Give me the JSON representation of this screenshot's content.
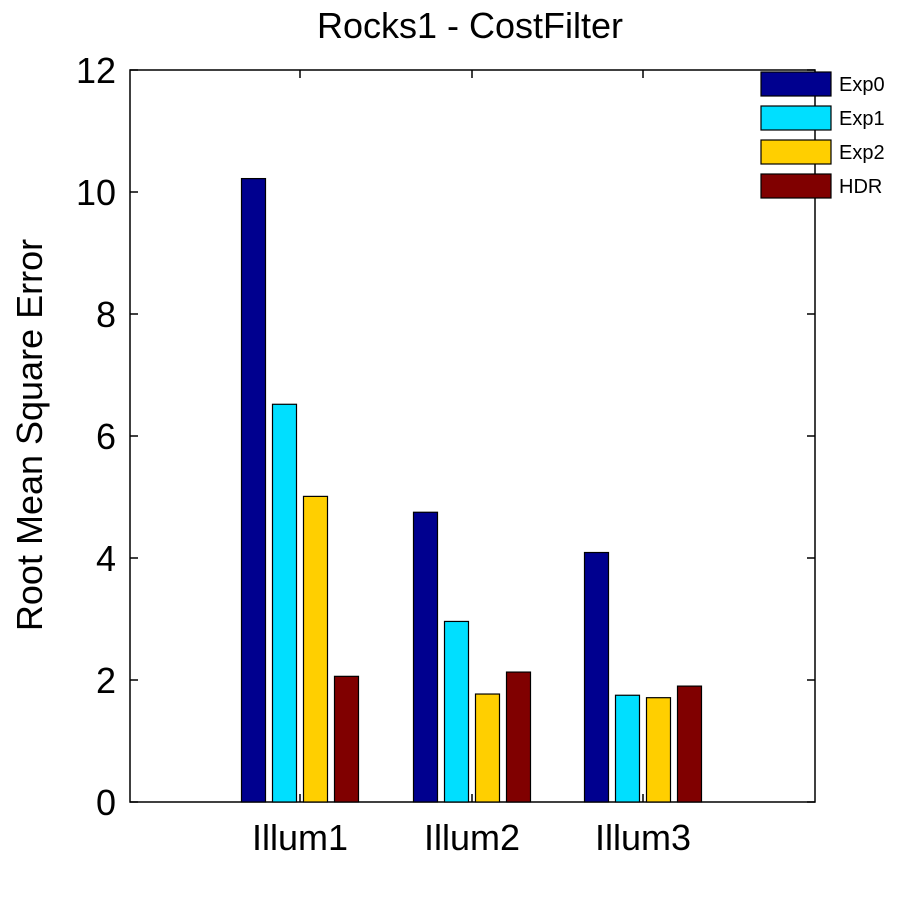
{
  "chart_data": {
    "type": "bar",
    "title": "Rocks1 - CostFilter",
    "xlabel": "",
    "ylabel": "Root Mean Square Error",
    "ylim": [
      0,
      12
    ],
    "yticks": [
      0,
      2,
      4,
      6,
      8,
      10,
      12
    ],
    "categories": [
      "Illum1",
      "Illum2",
      "Illum3"
    ],
    "series": [
      {
        "name": "Exp0",
        "color": "#00008F",
        "values": [
          10.22,
          4.75,
          4.09
        ]
      },
      {
        "name": "Exp1",
        "color": "#00DFFF",
        "values": [
          6.52,
          2.96,
          1.75
        ]
      },
      {
        "name": "Exp2",
        "color": "#FFCF00",
        "values": [
          5.01,
          1.77,
          1.71
        ]
      },
      {
        "name": "HDR",
        "color": "#800000",
        "values": [
          2.06,
          2.13,
          1.9
        ]
      }
    ],
    "legend": "top-right",
    "grid": false
  }
}
